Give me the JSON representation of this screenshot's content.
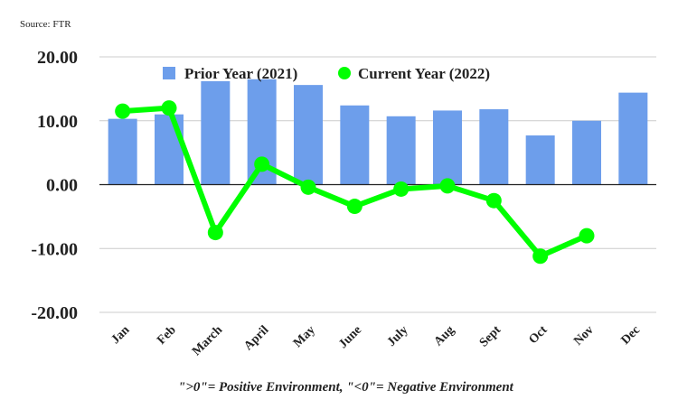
{
  "source_note": "Source: FTR",
  "footnote": "\">0\"= Positive Environment, \"<0\"= Negative Environment",
  "colors": {
    "prior_bar": "#6d9eeb",
    "current_line": "#00ff00",
    "zero_line": "#222222",
    "grid": "#cccccc",
    "text": "#222222"
  },
  "chart_data": {
    "type": "bar+line",
    "categories": [
      "Jan",
      "Feb",
      "March",
      "April",
      "May",
      "June",
      "July",
      "Aug",
      "Sept",
      "Oct",
      "Nov",
      "Dec"
    ],
    "series": [
      {
        "name": "Prior Year (2021)",
        "type": "bar",
        "values": [
          10.3,
          11.0,
          16.2,
          16.5,
          15.6,
          12.4,
          10.7,
          11.6,
          11.8,
          7.7,
          10.0,
          14.4
        ]
      },
      {
        "name": "Current Year (2022)",
        "type": "line",
        "values": [
          11.5,
          12.0,
          -7.5,
          3.2,
          -0.4,
          -3.4,
          -0.7,
          -0.2,
          -2.5,
          -11.2,
          -8.0,
          null
        ]
      }
    ],
    "y_ticks": [
      "20.00",
      "10.00",
      "0.00",
      "-10.00",
      "-20.00"
    ],
    "ylim": [
      -20,
      20
    ],
    "grid": true,
    "legend_position": "top"
  }
}
